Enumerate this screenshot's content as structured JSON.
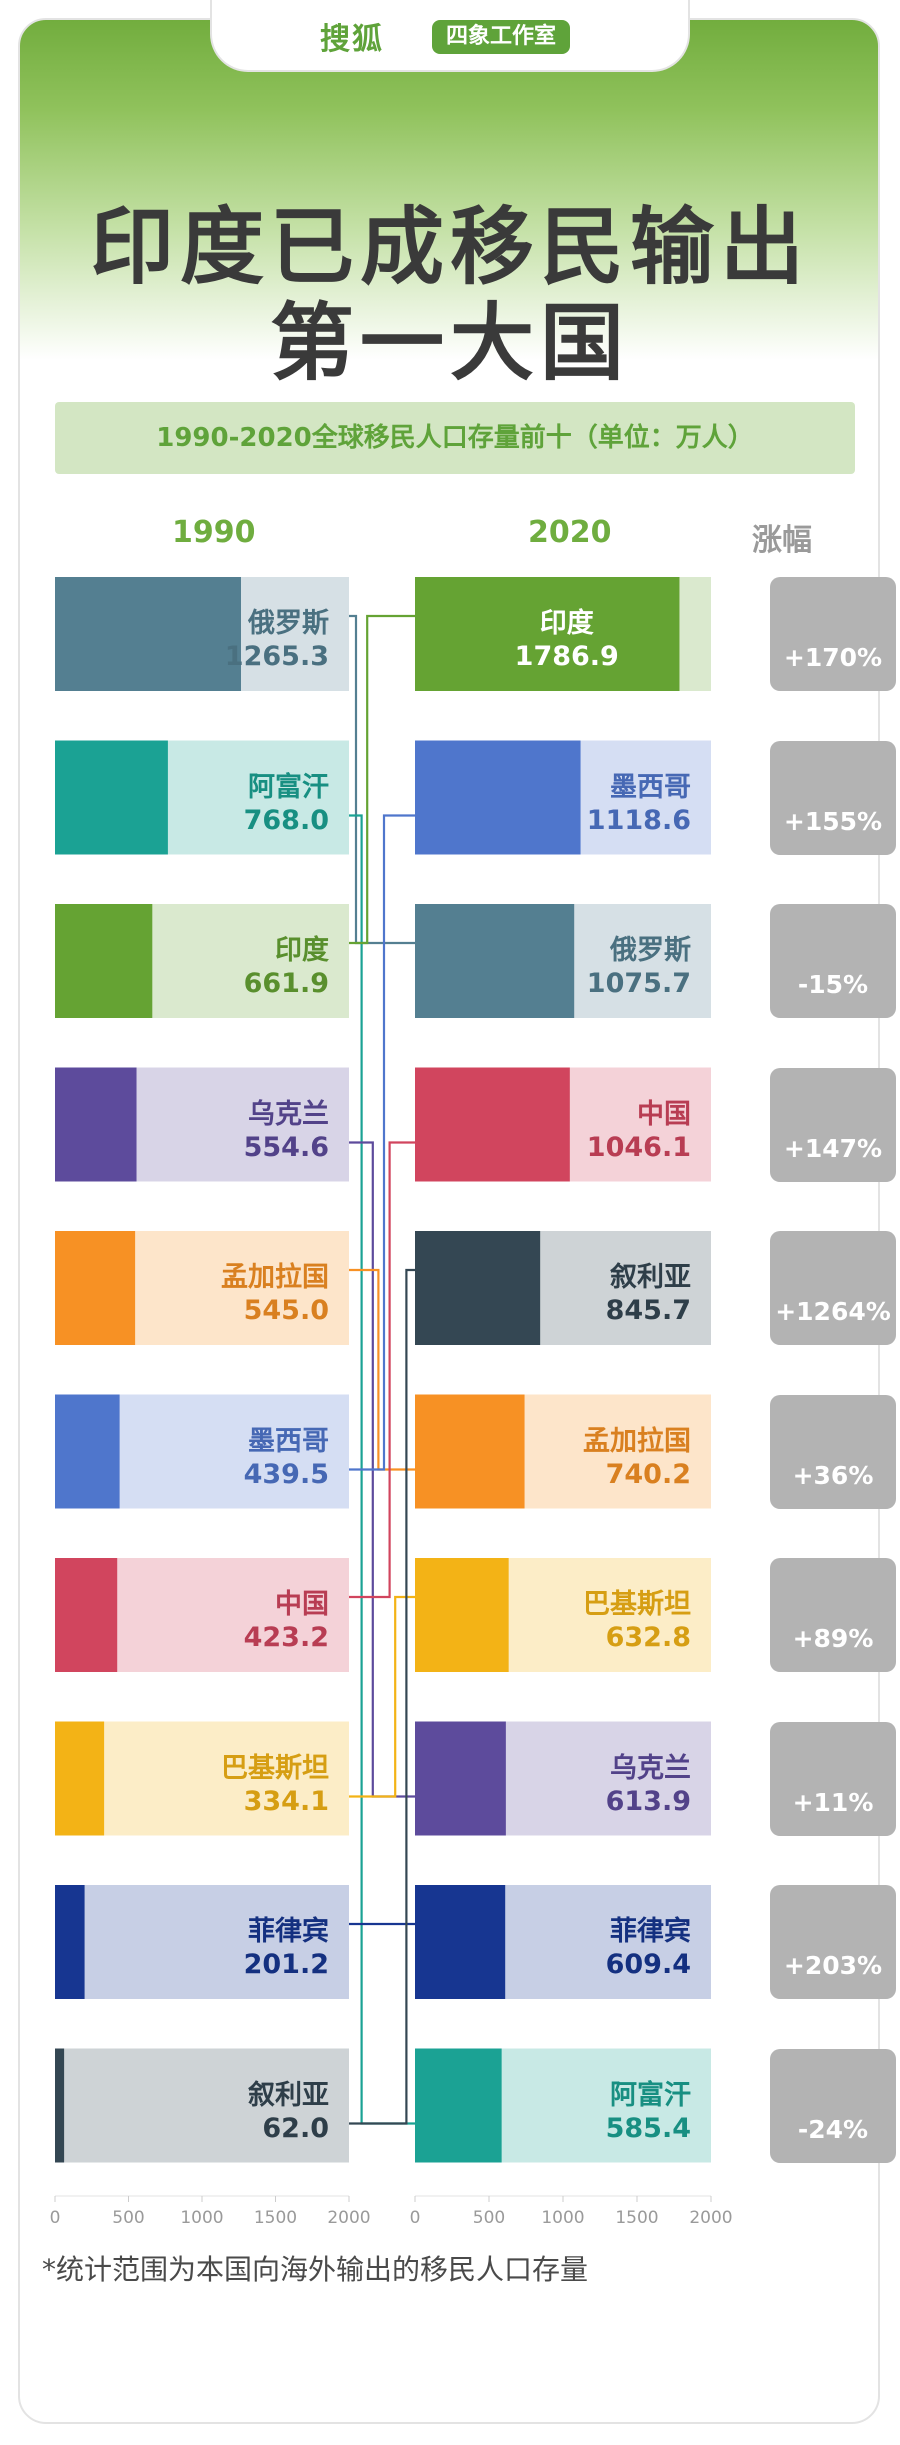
{
  "header": {
    "brand": "搜狐",
    "studio": "四象工作室"
  },
  "title_line1": "印度已成移民输出",
  "title_line2": "第一大国",
  "subtitle": "1990-2020全球移民人口存量前十（单位：万人）",
  "footnote": "*统计范围为本国向海外输出的移民人口存量",
  "columns": {
    "left": "1990",
    "right": "2020",
    "rise": "涨幅"
  },
  "colors": {
    "俄罗斯": "#547f91",
    "阿富汗": "#1ba294",
    "印度": "#65a333",
    "乌克兰": "#5d4b9c",
    "孟加拉国": "#f79124",
    "墨西哥": "#4f76cc",
    "中国": "#d1455e",
    "巴基斯坦": "#f3b316",
    "菲律宾": "#173691",
    "叙利亚": "#344753",
    "rise_up": "#f6ea3a",
    "rise_down": "#c5ebe8"
  },
  "chart_data": {
    "type": "bar",
    "unit": "万人",
    "xlim": [
      0,
      2000
    ],
    "xticks": [
      "0",
      "500",
      "1000",
      "1500",
      "2000"
    ],
    "series_1990": [
      {
        "name": "俄罗斯",
        "value": "1265.3"
      },
      {
        "name": "阿富汗",
        "value": "768.0"
      },
      {
        "name": "印度",
        "value": "661.9"
      },
      {
        "name": "乌克兰",
        "value": "554.6"
      },
      {
        "name": "孟加拉国",
        "value": "545.0"
      },
      {
        "name": "墨西哥",
        "value": "439.5"
      },
      {
        "name": "中国",
        "value": "423.2"
      },
      {
        "name": "巴基斯坦",
        "value": "334.1"
      },
      {
        "name": "菲律宾",
        "value": "201.2"
      },
      {
        "name": "叙利亚",
        "value": "62.0"
      }
    ],
    "series_2020": [
      {
        "name": "印度",
        "value": "1786.9",
        "change": "+170%",
        "direction": "up"
      },
      {
        "name": "墨西哥",
        "value": "1118.6",
        "change": "+155%",
        "direction": "up"
      },
      {
        "name": "俄罗斯",
        "value": "1075.7",
        "change": "-15%",
        "direction": "down"
      },
      {
        "name": "中国",
        "value": "1046.1",
        "change": "+147%",
        "direction": "up"
      },
      {
        "name": "叙利亚",
        "value": "845.7",
        "change": "+1264%",
        "direction": "up"
      },
      {
        "name": "孟加拉国",
        "value": "740.2",
        "change": "+36%",
        "direction": "up"
      },
      {
        "name": "巴基斯坦",
        "value": "632.8",
        "change": "+89%",
        "direction": "up"
      },
      {
        "name": "乌克兰",
        "value": "613.9",
        "change": "+11%",
        "direction": "up"
      },
      {
        "name": "菲律宾",
        "value": "609.4",
        "change": "+203%",
        "direction": "up"
      },
      {
        "name": "阿富汗",
        "value": "585.4",
        "change": "-24%",
        "direction": "down"
      }
    ]
  }
}
